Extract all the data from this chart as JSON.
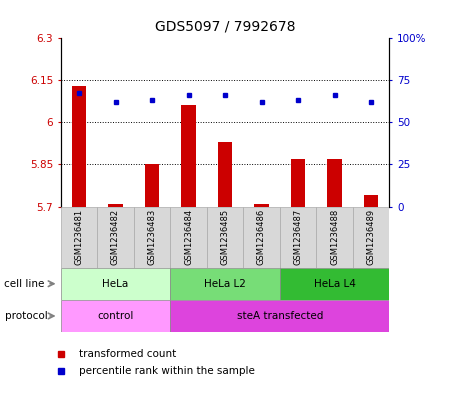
{
  "title": "GDS5097 / 7992678",
  "samples": [
    "GSM1236481",
    "GSM1236482",
    "GSM1236483",
    "GSM1236484",
    "GSM1236485",
    "GSM1236486",
    "GSM1236487",
    "GSM1236488",
    "GSM1236489"
  ],
  "red_values": [
    6.13,
    5.71,
    5.85,
    6.06,
    5.93,
    5.71,
    5.87,
    5.87,
    5.74
  ],
  "blue_values": [
    67,
    62,
    63,
    66,
    66,
    62,
    63,
    66,
    62
  ],
  "ylim_left": [
    5.7,
    6.3
  ],
  "ylim_right": [
    0,
    100
  ],
  "yticks_left": [
    5.7,
    5.85,
    6.0,
    6.15,
    6.3
  ],
  "ytick_labels_left": [
    "5.7",
    "5.85",
    "6",
    "6.15",
    "6.3"
  ],
  "yticks_right": [
    0,
    25,
    50,
    75,
    100
  ],
  "ytick_labels_right": [
    "0",
    "25",
    "50",
    "75",
    "100%"
  ],
  "hlines": [
    5.85,
    6.0,
    6.15
  ],
  "red_color": "#cc0000",
  "blue_color": "#0000cc",
  "bar_base": 5.7,
  "cell_line_groups": [
    {
      "label": "HeLa",
      "start": 0,
      "end": 3,
      "color": "#ccffcc"
    },
    {
      "label": "HeLa L2",
      "start": 3,
      "end": 6,
      "color": "#77dd77"
    },
    {
      "label": "HeLa L4",
      "start": 6,
      "end": 9,
      "color": "#33bb33"
    }
  ],
  "protocol_groups": [
    {
      "label": "control",
      "start": 0,
      "end": 3,
      "color": "#ff99ff"
    },
    {
      "label": "steA transfected",
      "start": 3,
      "end": 9,
      "color": "#dd44dd"
    }
  ],
  "legend_red": "transformed count",
  "legend_blue": "percentile rank within the sample",
  "bg_color": "#d8d8d8",
  "plot_bg": "#ffffff",
  "title_fontsize": 10,
  "tick_fontsize": 7.5,
  "label_fontsize": 7.5
}
